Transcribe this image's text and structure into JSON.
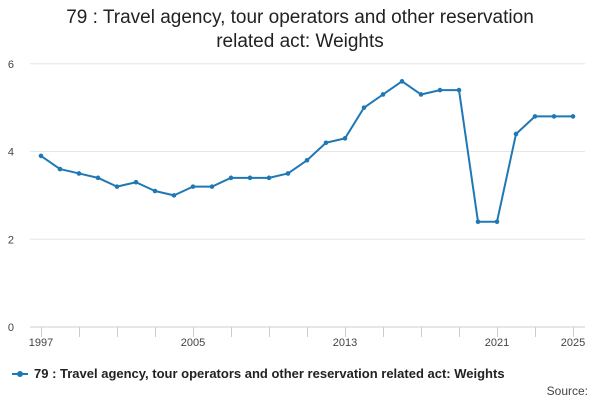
{
  "chart_data": {
    "type": "line",
    "title": "79 : Travel agency, tour operators and other reservation related act: Weights",
    "title_lines": [
      "79 : Travel agency, tour operators and other reservation",
      "related act: Weights"
    ],
    "xlabel": "",
    "ylabel": "",
    "x": [
      1997,
      1998,
      1999,
      2000,
      2001,
      2002,
      2003,
      2004,
      2005,
      2006,
      2007,
      2008,
      2009,
      2010,
      2011,
      2012,
      2013,
      2014,
      2015,
      2016,
      2017,
      2018,
      2019,
      2020,
      2021,
      2022,
      2023,
      2024,
      2025
    ],
    "x_ticks": [
      1997,
      2005,
      2013,
      2021,
      2025
    ],
    "y_ticks": [
      0,
      2,
      4,
      6
    ],
    "ylim": [
      0,
      6.2
    ],
    "xlim": [
      1997,
      2025
    ],
    "grid": true,
    "legend_position": "bottom-left",
    "series": [
      {
        "name": "79 : Travel agency, tour operators and other reservation related act: Weights",
        "color": "#1f78b4",
        "values": [
          3.9,
          3.6,
          3.5,
          3.4,
          3.2,
          3.3,
          3.1,
          3.0,
          3.2,
          3.2,
          3.4,
          3.4,
          3.4,
          3.5,
          3.8,
          4.2,
          4.3,
          5.0,
          5.3,
          5.6,
          5.3,
          5.4,
          5.4,
          2.4,
          2.4,
          4.4,
          4.8,
          4.8,
          4.8
        ]
      }
    ]
  },
  "footer": {
    "source_label": "Source:"
  },
  "colors": {
    "series": "#1f78b4",
    "grid": "#e6e6e6",
    "axis": "#cccccc"
  }
}
